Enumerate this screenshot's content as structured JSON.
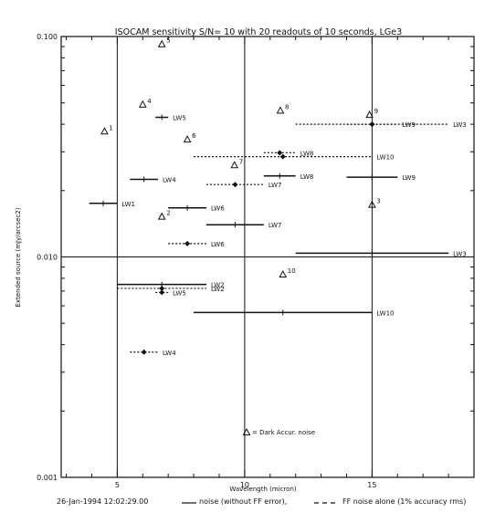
{
  "chart_data": {
    "type": "scatter",
    "title": "ISOCAM sensitivity S/N= 10 with 20 readouts of 10 seconds, LGe3",
    "xlabel": "Wavelength (micron)",
    "ylabel": "Extended source (mJy/arcsec2)",
    "xlim": [
      2.8,
      19.0
    ],
    "ylim": [
      0.001,
      0.1
    ],
    "yscale": "log",
    "x_ticks": [
      5,
      10,
      15
    ],
    "y_ticks": [
      0.001,
      0.01,
      0.1
    ],
    "y_tick_labels": [
      "0.001",
      "0.010",
      "0.100"
    ],
    "reference_lines": {
      "x": [
        5,
        10,
        15
      ],
      "y": [
        0.01
      ]
    },
    "legend": {
      "triangle_label": "= Dark Accur. noise",
      "solid_label": "noise (without FF error),",
      "dashed_label": "FF noise alone (1% accuracy rms)"
    },
    "timestamp": "26-Jan-1994 12:02:29.00",
    "dark_noise_points": [
      {
        "label": "1",
        "x": 4.5,
        "y": 0.037
      },
      {
        "label": "2",
        "x": 6.75,
        "y": 0.0152
      },
      {
        "label": "3",
        "x": 15.0,
        "y": 0.0172
      },
      {
        "label": "4",
        "x": 6.0,
        "y": 0.049
      },
      {
        "label": "5",
        "x": 6.75,
        "y": 0.092
      },
      {
        "label": "6",
        "x": 7.75,
        "y": 0.034
      },
      {
        "label": "7",
        "x": 9.6,
        "y": 0.026
      },
      {
        "label": "8",
        "x": 11.4,
        "y": 0.046
      },
      {
        "label": "9",
        "x": 14.9,
        "y": 0.044
      },
      {
        "label": "10",
        "x": 11.5,
        "y": 0.0083
      }
    ],
    "noise_segments": [
      {
        "label": "LW1",
        "x0": 3.9,
        "x1": 5.0,
        "y": 0.0175
      },
      {
        "label": "LW2",
        "x0": 5.0,
        "x1": 8.5,
        "y": 0.0075
      },
      {
        "label": "LW3",
        "x0": 12.0,
        "x1": 18.0,
        "y": 0.0104
      },
      {
        "label": "LW4",
        "x0": 5.5,
        "x1": 6.6,
        "y": 0.0225
      },
      {
        "label": "LW5",
        "x0": 6.5,
        "x1": 7.0,
        "y": 0.043
      },
      {
        "label": "LW6",
        "x0": 7.0,
        "x1": 8.5,
        "y": 0.0167
      },
      {
        "label": "LW7",
        "x0": 8.5,
        "x1": 10.75,
        "y": 0.014
      },
      {
        "label": "LW8",
        "x0": 10.75,
        "x1": 12.0,
        "y": 0.0233
      },
      {
        "label": "LW9",
        "x0": 14.0,
        "x1": 16.0,
        "y": 0.023
      },
      {
        "label": "LW10",
        "x0": 8.0,
        "x1": 15.0,
        "y": 0.0056
      }
    ],
    "ff_segments": [
      {
        "label": "LW2",
        "x0": 5.0,
        "x1": 8.5,
        "y": 0.0072
      },
      {
        "label": "LW3",
        "x0": 12.0,
        "x1": 18.0,
        "y": 0.04
      },
      {
        "label": "LW4",
        "x0": 5.5,
        "x1": 6.6,
        "y": 0.0037
      },
      {
        "label": "LW5",
        "x0": 6.5,
        "x1": 7.0,
        "y": 0.0069
      },
      {
        "label": "LW6",
        "x0": 7.0,
        "x1": 8.5,
        "y": 0.0115
      },
      {
        "label": "LW7",
        "x0": 8.5,
        "x1": 10.75,
        "y": 0.0213
      },
      {
        "label": "LW8",
        "x0": 10.75,
        "x1": 12.0,
        "y": 0.0297
      },
      {
        "label": "LW9",
        "x0": 14.0,
        "x1": 16.0,
        "y": 0.04
      },
      {
        "label": "LW10",
        "x0": 8.0,
        "x1": 15.0,
        "y": 0.0285
      }
    ]
  }
}
